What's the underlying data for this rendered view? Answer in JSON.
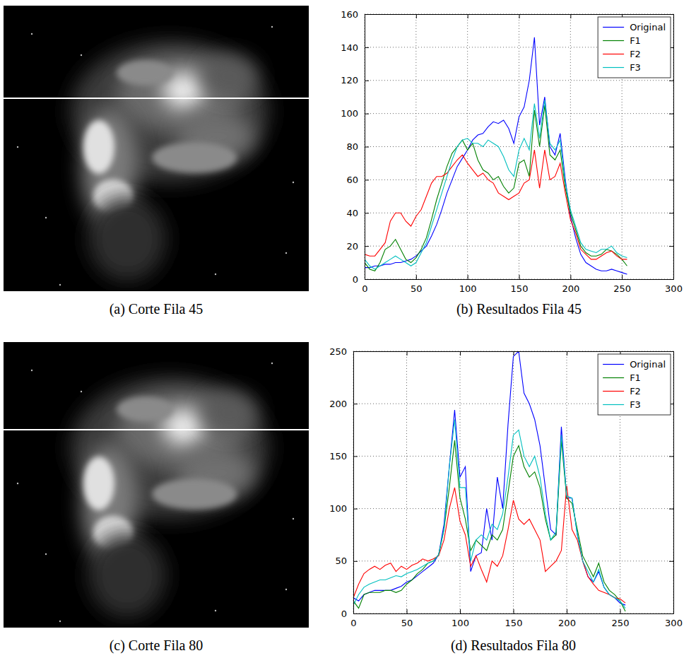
{
  "figures": [
    {
      "caption": "(a) Corte Fila 45"
    },
    {
      "caption": "(c) Corte Fila 80"
    }
  ],
  "chart_data": [
    {
      "type": "line",
      "caption": "(b) Resultados Fila 45",
      "x": [
        0,
        5,
        10,
        15,
        20,
        25,
        30,
        35,
        40,
        45,
        50,
        55,
        60,
        65,
        70,
        75,
        80,
        85,
        90,
        95,
        100,
        105,
        110,
        115,
        120,
        125,
        130,
        135,
        140,
        145,
        150,
        155,
        160,
        165,
        170,
        175,
        180,
        185,
        190,
        195,
        200,
        205,
        210,
        215,
        220,
        225,
        230,
        235,
        240,
        245,
        250,
        255
      ],
      "series": [
        {
          "name": "Original",
          "color": "#0000ff",
          "values": [
            7,
            7,
            8,
            8,
            9,
            9,
            10,
            10,
            11,
            12,
            14,
            17,
            20,
            26,
            33,
            42,
            52,
            60,
            68,
            73,
            78,
            84,
            87,
            88,
            92,
            95,
            94,
            96,
            91,
            82,
            98,
            104,
            120,
            146,
            93,
            110,
            80,
            75,
            88,
            60,
            38,
            25,
            15,
            10,
            8,
            6,
            5,
            5,
            6,
            5,
            4,
            3
          ]
        },
        {
          "name": "F1",
          "color": "#008000",
          "values": [
            10,
            6,
            5,
            10,
            18,
            20,
            24,
            18,
            12,
            10,
            13,
            18,
            25,
            36,
            48,
            58,
            68,
            76,
            80,
            84,
            78,
            82,
            72,
            66,
            64,
            60,
            62,
            56,
            52,
            55,
            70,
            72,
            62,
            102,
            80,
            105,
            75,
            72,
            78,
            55,
            40,
            30,
            20,
            16,
            14,
            14,
            15,
            18,
            17,
            15,
            12,
            8
          ]
        },
        {
          "name": "F2",
          "color": "#ff0000",
          "values": [
            15,
            14,
            14,
            18,
            22,
            35,
            40,
            40,
            35,
            32,
            38,
            42,
            50,
            58,
            62,
            62,
            64,
            68,
            72,
            75,
            70,
            66,
            62,
            64,
            60,
            58,
            52,
            50,
            48,
            50,
            52,
            58,
            60,
            78,
            55,
            78,
            60,
            62,
            70,
            52,
            36,
            28,
            18,
            15,
            12,
            12,
            14,
            16,
            17,
            14,
            12,
            12
          ]
        },
        {
          "name": "F3",
          "color": "#00bfbf",
          "values": [
            12,
            8,
            6,
            8,
            10,
            12,
            14,
            12,
            10,
            8,
            10,
            16,
            22,
            32,
            42,
            52,
            62,
            72,
            80,
            84,
            85,
            82,
            82,
            80,
            84,
            82,
            80,
            74,
            66,
            62,
            78,
            85,
            78,
            106,
            85,
            108,
            82,
            78,
            84,
            58,
            42,
            32,
            22,
            18,
            17,
            16,
            18,
            18,
            20,
            16,
            14,
            13
          ]
        }
      ],
      "xlim": [
        0,
        300
      ],
      "xticks": [
        0,
        50,
        100,
        150,
        200,
        250,
        300
      ],
      "ylim": [
        0,
        160
      ],
      "yticks": [
        0,
        20,
        40,
        60,
        80,
        100,
        120,
        140,
        160
      ],
      "grid": true,
      "legend": "upper right"
    },
    {
      "type": "line",
      "caption": "(d) Resultados Fila 80",
      "x": [
        0,
        5,
        10,
        15,
        20,
        25,
        30,
        35,
        40,
        45,
        50,
        55,
        60,
        65,
        70,
        75,
        80,
        85,
        90,
        95,
        100,
        105,
        110,
        115,
        120,
        125,
        130,
        135,
        140,
        145,
        150,
        155,
        160,
        165,
        170,
        175,
        180,
        185,
        190,
        195,
        200,
        205,
        210,
        215,
        220,
        225,
        230,
        235,
        240,
        245,
        250,
        255
      ],
      "series": [
        {
          "name": "Original",
          "color": "#0000ff",
          "values": [
            15,
            12,
            18,
            20,
            22,
            22,
            22,
            22,
            24,
            26,
            30,
            32,
            36,
            40,
            44,
            48,
            56,
            85,
            140,
            194,
            130,
            140,
            40,
            55,
            58,
            100,
            70,
            130,
            100,
            180,
            245,
            250,
            210,
            200,
            185,
            160,
            120,
            80,
            75,
            178,
            110,
            110,
            75,
            50,
            35,
            30,
            40,
            25,
            18,
            15,
            10,
            8
          ]
        },
        {
          "name": "F1",
          "color": "#008000",
          "values": [
            12,
            5,
            18,
            20,
            20,
            20,
            22,
            22,
            20,
            22,
            28,
            32,
            38,
            42,
            48,
            50,
            56,
            80,
            120,
            165,
            110,
            90,
            60,
            70,
            65,
            60,
            75,
            70,
            80,
            115,
            150,
            160,
            140,
            130,
            135,
            120,
            90,
            70,
            75,
            165,
            110,
            105,
            80,
            55,
            45,
            35,
            48,
            30,
            22,
            18,
            12,
            2
          ]
        },
        {
          "name": "F2",
          "color": "#ff0000",
          "values": [
            15,
            28,
            38,
            42,
            45,
            42,
            46,
            48,
            40,
            45,
            42,
            46,
            48,
            52,
            50,
            52,
            55,
            70,
            100,
            120,
            88,
            75,
            45,
            55,
            42,
            30,
            50,
            45,
            55,
            80,
            108,
            90,
            85,
            90,
            80,
            70,
            40,
            45,
            50,
            60,
            122,
            80,
            70,
            50,
            35,
            28,
            22,
            20,
            18,
            15,
            14,
            10
          ]
        },
        {
          "name": "F3",
          "color": "#00bfbf",
          "values": [
            8,
            18,
            25,
            28,
            30,
            32,
            32,
            34,
            36,
            35,
            38,
            40,
            42,
            45,
            48,
            50,
            56,
            80,
            140,
            185,
            120,
            120,
            50,
            70,
            75,
            70,
            85,
            80,
            95,
            130,
            170,
            175,
            150,
            140,
            150,
            130,
            95,
            70,
            78,
            170,
            112,
            110,
            75,
            50,
            40,
            30,
            42,
            25,
            18,
            15,
            12,
            5
          ]
        }
      ],
      "xlim": [
        0,
        300
      ],
      "xticks": [
        0,
        50,
        100,
        150,
        200,
        250,
        300
      ],
      "ylim": [
        0,
        250
      ],
      "yticks": [
        0,
        50,
        100,
        150,
        200,
        250
      ],
      "grid": true,
      "legend": "upper right"
    }
  ]
}
